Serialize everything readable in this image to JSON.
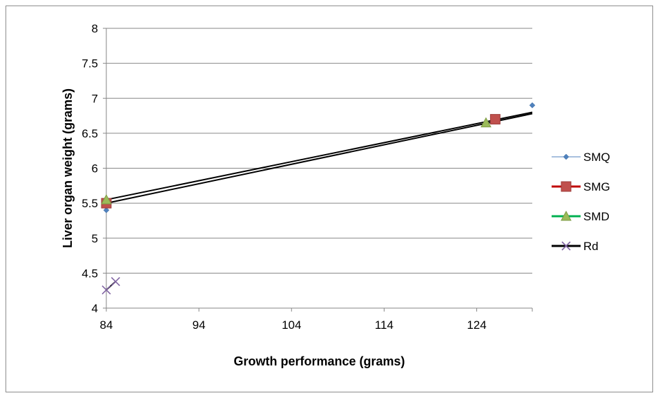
{
  "chart_data": {
    "type": "scatter",
    "title": "",
    "xlabel": "Growth performance (grams)",
    "ylabel": "Liver organ weight (grams)",
    "xlim": [
      84,
      130
    ],
    "ylim": [
      4,
      8
    ],
    "x_ticks": [
      84,
      94,
      104,
      114,
      124
    ],
    "y_ticks": [
      4,
      4.5,
      5,
      5.5,
      6,
      6.5,
      7,
      7.5,
      8
    ],
    "grid": "horizontal",
    "legend_position": "right",
    "series": [
      {
        "name": "SMQ",
        "color": "#4f81bd",
        "marker": "diamond",
        "line": "thin",
        "points": [
          {
            "x": 84,
            "y": 5.4
          },
          {
            "x": 130,
            "y": 6.9
          }
        ]
      },
      {
        "name": "SMG",
        "color": "#c0504d",
        "marker": "square",
        "line": "thick",
        "points": [
          {
            "x": 84,
            "y": 5.5
          },
          {
            "x": 126,
            "y": 6.7
          }
        ]
      },
      {
        "name": "SMD",
        "color": "#9bbb59",
        "marker": "triangle",
        "line": "thick",
        "points": [
          {
            "x": 84,
            "y": 5.55
          },
          {
            "x": 125,
            "y": 6.65
          }
        ]
      },
      {
        "name": "Rd",
        "color": "#8064a2",
        "marker": "x",
        "line": "thick",
        "points": [
          {
            "x": 84,
            "y": 4.26
          },
          {
            "x": 85,
            "y": 4.38
          }
        ]
      }
    ],
    "trendlines": [
      {
        "color": "#000000",
        "from": {
          "x": 84,
          "y": 5.55
        },
        "to": {
          "x": 130,
          "y": 6.8
        }
      },
      {
        "color": "#000000",
        "from": {
          "x": 84,
          "y": 5.5
        },
        "to": {
          "x": 130,
          "y": 6.78
        }
      },
      {
        "color": "#000000",
        "from": {
          "x": 84,
          "y": 4.26
        },
        "to": {
          "x": 85,
          "y": 4.38
        }
      }
    ],
    "legend_line_color": "#000000"
  }
}
